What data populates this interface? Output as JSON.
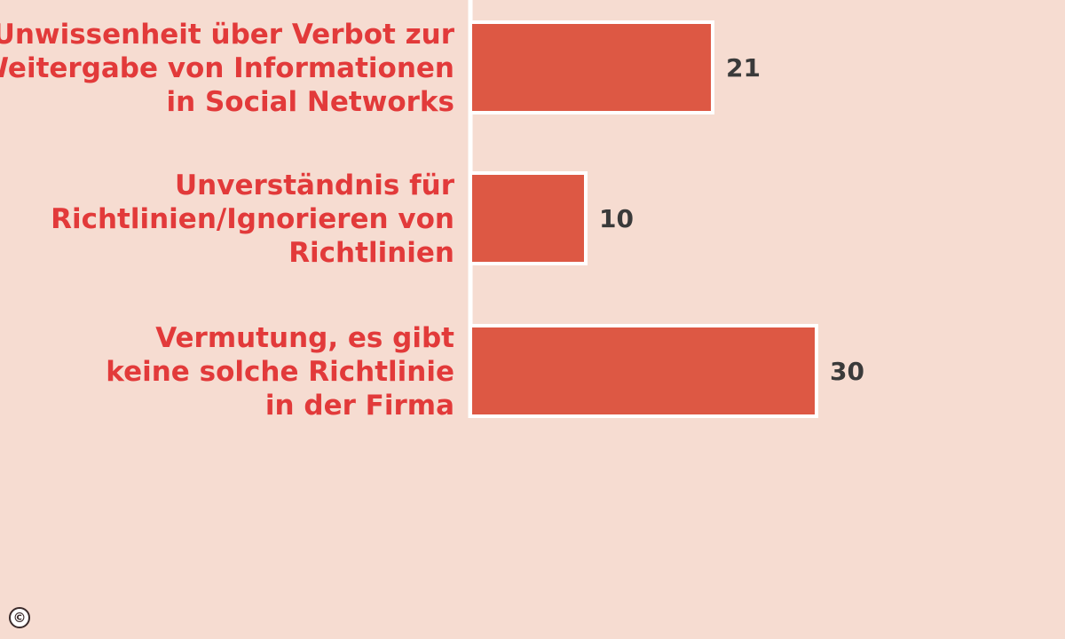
{
  "chart_data": {
    "type": "bar",
    "orientation": "horizontal",
    "categories": [
      [
        "Unwissenheit über Verbot zur",
        "Weitergabe von Informationen",
        "in Social Networks"
      ],
      [
        "Unverständnis für",
        "Richtlinien/Ignorieren von",
        "Richtlinien"
      ],
      [
        "Vermutung, es gibt",
        "keine solche Richtlinie",
        "in der Firma"
      ]
    ],
    "values": [
      21,
      10,
      30
    ],
    "data_labels": [
      "21",
      "10",
      "30"
    ],
    "xlim": [
      0,
      30
    ],
    "grid": false,
    "legend": "none"
  },
  "colors": {
    "background": "#f6dcd1",
    "bar_fill": "#dd5844",
    "bar_stroke": "#ffffff",
    "axis_line": "#ffffff",
    "category_text": "#e23a3a",
    "value_text": "#3a3a3a"
  },
  "icons": {
    "copyright": "copyright-icon"
  },
  "footer": {
    "copyright_symbol": "©"
  }
}
